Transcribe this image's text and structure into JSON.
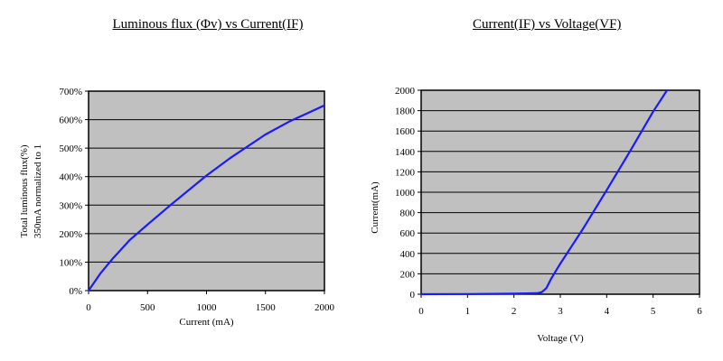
{
  "chart_data": [
    {
      "type": "line",
      "title": "Luminous flux (Φv) vs Current(IF)",
      "xlabel": "Current (mA)",
      "ylabel": [
        "Total luminous flux(%)",
        "350mA normalized to 1"
      ],
      "xlim": [
        0,
        2000
      ],
      "ylim": [
        0,
        700
      ],
      "x_ticks": [
        "0",
        "500",
        "1000",
        "1500",
        "2000"
      ],
      "y_ticks": [
        "0%",
        "100%",
        "200%",
        "300%",
        "400%",
        "500%",
        "600%",
        "700%"
      ],
      "grid": true,
      "series": [
        {
          "color": "#1a1aff",
          "x": [
            0,
            100,
            200,
            350,
            500,
            700,
            1000,
            1200,
            1500,
            1700,
            2000
          ],
          "y": [
            0,
            60,
            110,
            178,
            232,
            302,
            404,
            465,
            548,
            593,
            650
          ]
        }
      ]
    },
    {
      "type": "line",
      "title": "Current(IF) vs Voltage(VF)",
      "xlabel": "Voltage (V)",
      "ylabel": "Current(mA)",
      "xlim": [
        0,
        6
      ],
      "ylim": [
        0,
        2000
      ],
      "x_ticks": [
        "0",
        "1",
        "2",
        "3",
        "4",
        "5",
        "6"
      ],
      "y_ticks": [
        "0",
        "200",
        "400",
        "600",
        "800",
        "1000",
        "1200",
        "1400",
        "1600",
        "1800",
        "2000"
      ],
      "grid": true,
      "series": [
        {
          "color": "#1a1aff",
          "x": [
            0,
            1,
            2,
            2.5,
            2.6,
            2.7,
            2.8,
            3.0,
            3.5,
            4.0,
            4.5,
            5.0,
            5.3
          ],
          "y": [
            0,
            2,
            5,
            10,
            20,
            60,
            150,
            300,
            650,
            1020,
            1400,
            1790,
            2000
          ]
        }
      ]
    }
  ]
}
